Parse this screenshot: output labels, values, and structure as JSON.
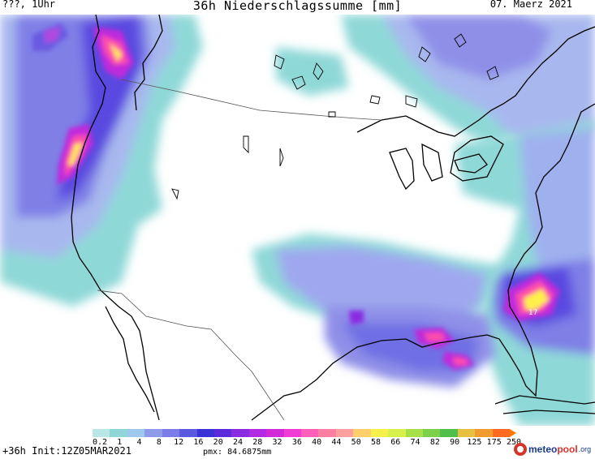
{
  "header": {
    "location_time": "???, 1Uhr",
    "title": "36h Niederschlagssumme [mm]",
    "date": "07. Maerz 2021"
  },
  "map": {
    "max_label": "17",
    "colors": {
      "light": "#8fd8d8",
      "light2": "#a8e0e0",
      "mid": "#9999e8",
      "blue": "#5f5fe0",
      "deep": "#3b32d6",
      "violet": "#8a2be2",
      "magenta": "#d12ad6",
      "pink": "#ff4fa8",
      "yellow": "#fff04a",
      "coast": "#000000",
      "border": "#555555"
    }
  },
  "colorbar": {
    "ticks": [
      "0.2",
      "1",
      "4",
      "8",
      "12",
      "16",
      "20",
      "24",
      "28",
      "32",
      "36",
      "40",
      "44",
      "50",
      "58",
      "66",
      "74",
      "82",
      "90",
      "125",
      "175",
      "250"
    ],
    "colors": [
      "#b9e6e6",
      "#8fd6d6",
      "#9fc8ee",
      "#8f9be8",
      "#7c7ce8",
      "#5a5ae0",
      "#3a32d6",
      "#5b2adb",
      "#8a2be2",
      "#b02be2",
      "#d12ad6",
      "#f23ad6",
      "#ff5fb8",
      "#ff7fa0",
      "#ffa0a0",
      "#ffd06a",
      "#f5f04a",
      "#d8f04a",
      "#a8e04a",
      "#7cd04a",
      "#50c04a",
      "#e8c040",
      "#f09a30",
      "#ff6a20"
    ]
  },
  "footer": {
    "run": "+36h Init:12Z05MAR2021",
    "pmx": "pmx: 84.6875mm",
    "brand_meteo": "meteo",
    "brand_pool": "pool",
    "brand_tld": ".org"
  }
}
